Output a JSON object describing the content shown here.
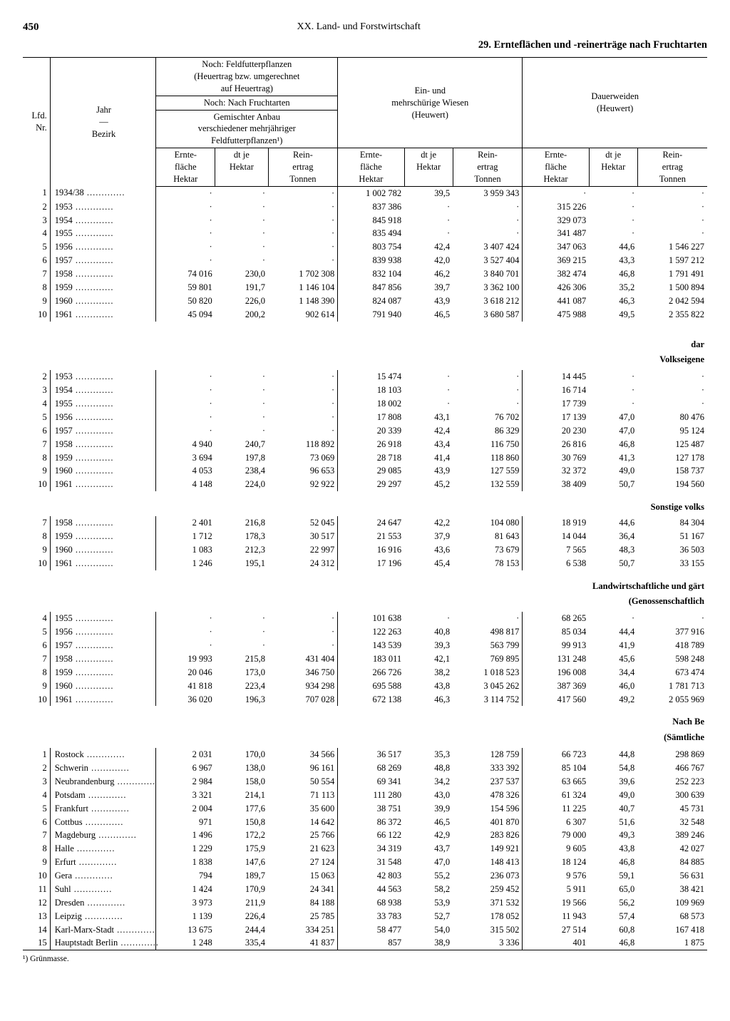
{
  "page_number": "450",
  "chapter": "XX. Land- und Forstwirtschaft",
  "table_title": "29. Ernteflächen und -reinerträge nach Fruchtarten",
  "header": {
    "lfd": "Lfd.\nNr.",
    "jahr": "Jahr\n—\nBezirk",
    "group_a_line1": "Noch: Feldfutterpflanzen",
    "group_a_line2": "(Heuertrag bzw. umgerechnet",
    "group_a_line3": "auf Heuertrag)",
    "group_a_sub1": "Noch: Nach Fruchtarten",
    "group_a_sub2a": "Gemischter Anbau",
    "group_a_sub2b": "verschiedener mehrjähriger",
    "group_a_sub2c": "Feldfutterpflanzen¹)",
    "group_b_line1": "Ein- und",
    "group_b_line2": "mehrschürige Wiesen",
    "group_b_line3": "(Heuwert)",
    "group_c_line1": "Dauerweiden",
    "group_c_line2": "(Heuwert)",
    "c_ernte": "Ernte-\nfläche\nHektar",
    "c_dtje": "dt je\nHektar",
    "c_rein": "Rein-\nertrag\nTonnen"
  },
  "sections": [
    {
      "title": "",
      "rows": [
        {
          "n": "1",
          "y": "1934/38",
          "a1": "·",
          "a2": "·",
          "a3": "·",
          "b1": "1 002 782",
          "b2": "39,5",
          "b3": "3 959 343",
          "c1": "·",
          "c2": "·",
          "c3": "·"
        },
        {
          "n": "2",
          "y": "1953",
          "a1": "·",
          "a2": "·",
          "a3": "·",
          "b1": "837 386",
          "b2": "·",
          "b3": "·",
          "c1": "315 226",
          "c2": "·",
          "c3": "·"
        },
        {
          "n": "3",
          "y": "1954",
          "a1": "·",
          "a2": "·",
          "a3": "·",
          "b1": "845 918",
          "b2": "·",
          "b3": "·",
          "c1": "329 073",
          "c2": "·",
          "c3": "·"
        },
        {
          "n": "4",
          "y": "1955",
          "a1": "·",
          "a2": "·",
          "a3": "·",
          "b1": "835 494",
          "b2": "·",
          "b3": "·",
          "c1": "341 487",
          "c2": "·",
          "c3": "·"
        },
        {
          "n": "5",
          "y": "1956",
          "a1": "·",
          "a2": "·",
          "a3": "·",
          "b1": "803 754",
          "b2": "42,4",
          "b3": "3 407 424",
          "c1": "347 063",
          "c2": "44,6",
          "c3": "1 546 227"
        },
        {
          "n": "6",
          "y": "1957",
          "a1": "·",
          "a2": "·",
          "a3": "·",
          "b1": "839 938",
          "b2": "42,0",
          "b3": "3 527 404",
          "c1": "369 215",
          "c2": "43,3",
          "c3": "1 597 212"
        },
        {
          "n": "7",
          "y": "1958",
          "a1": "74 016",
          "a2": "230,0",
          "a3": "1 702 308",
          "b1": "832 104",
          "b2": "46,2",
          "b3": "3 840 701",
          "c1": "382 474",
          "c2": "46,8",
          "c3": "1 791 491"
        },
        {
          "n": "8",
          "y": "1959",
          "a1": "59 801",
          "a2": "191,7",
          "a3": "1 146 104",
          "b1": "847 856",
          "b2": "39,7",
          "b3": "3 362 100",
          "c1": "426 306",
          "c2": "35,2",
          "c3": "1 500 894"
        },
        {
          "n": "9",
          "y": "1960",
          "a1": "50 820",
          "a2": "226,0",
          "a3": "1 148 390",
          "b1": "824 087",
          "b2": "43,9",
          "b3": "3 618 212",
          "c1": "441 087",
          "c2": "46,3",
          "c3": "2 042 594"
        },
        {
          "n": "10",
          "y": "1961",
          "a1": "45 094",
          "a2": "200,2",
          "a3": "902 614",
          "b1": "791 940",
          "b2": "46,5",
          "b3": "3 680 587",
          "c1": "475 988",
          "c2": "49,5",
          "c3": "2 355 822"
        }
      ]
    },
    {
      "title": "dar",
      "sub": "Volkseigene",
      "rows": [
        {
          "n": "2",
          "y": "1953",
          "a1": "·",
          "a2": "·",
          "a3": "·",
          "b1": "15 474",
          "b2": "·",
          "b3": "·",
          "c1": "14 445",
          "c2": "·",
          "c3": "·"
        },
        {
          "n": "3",
          "y": "1954",
          "a1": "·",
          "a2": "·",
          "a3": "·",
          "b1": "18 103",
          "b2": "·",
          "b3": "·",
          "c1": "16 714",
          "c2": "·",
          "c3": "·"
        },
        {
          "n": "4",
          "y": "1955",
          "a1": "·",
          "a2": "·",
          "a3": "·",
          "b1": "18 002",
          "b2": "·",
          "b3": "·",
          "c1": "17 739",
          "c2": "·",
          "c3": "·"
        },
        {
          "n": "5",
          "y": "1956",
          "a1": "·",
          "a2": "·",
          "a3": "·",
          "b1": "17 808",
          "b2": "43,1",
          "b3": "76 702",
          "c1": "17 139",
          "c2": "47,0",
          "c3": "80 476"
        },
        {
          "n": "6",
          "y": "1957",
          "a1": "·",
          "a2": "·",
          "a3": "·",
          "b1": "20 339",
          "b2": "42,4",
          "b3": "86 329",
          "c1": "20 230",
          "c2": "47,0",
          "c3": "95 124"
        },
        {
          "n": "7",
          "y": "1958",
          "a1": "4 940",
          "a2": "240,7",
          "a3": "118 892",
          "b1": "26 918",
          "b2": "43,4",
          "b3": "116 750",
          "c1": "26 816",
          "c2": "46,8",
          "c3": "125 487"
        },
        {
          "n": "8",
          "y": "1959",
          "a1": "3 694",
          "a2": "197,8",
          "a3": "73 069",
          "b1": "28 718",
          "b2": "41,4",
          "b3": "118 860",
          "c1": "30 769",
          "c2": "41,3",
          "c3": "127 178"
        },
        {
          "n": "9",
          "y": "1960",
          "a1": "4 053",
          "a2": "238,4",
          "a3": "96 653",
          "b1": "29 085",
          "b2": "43,9",
          "b3": "127 559",
          "c1": "32 372",
          "c2": "49,0",
          "c3": "158 737"
        },
        {
          "n": "10",
          "y": "1961",
          "a1": "4 148",
          "a2": "224,0",
          "a3": "92 922",
          "b1": "29 297",
          "b2": "45,2",
          "b3": "132 559",
          "c1": "38 409",
          "c2": "50,7",
          "c3": "194 560"
        }
      ]
    },
    {
      "title": "Sonstige volks",
      "rows": [
        {
          "n": "7",
          "y": "1958",
          "a1": "2 401",
          "a2": "216,8",
          "a3": "52 045",
          "b1": "24 647",
          "b2": "42,2",
          "b3": "104 080",
          "c1": "18 919",
          "c2": "44,6",
          "c3": "84 304"
        },
        {
          "n": "8",
          "y": "1959",
          "a1": "1 712",
          "a2": "178,3",
          "a3": "30 517",
          "b1": "21 553",
          "b2": "37,9",
          "b3": "81 643",
          "c1": "14 044",
          "c2": "36,4",
          "c3": "51 167"
        },
        {
          "n": "9",
          "y": "1960",
          "a1": "1 083",
          "a2": "212,3",
          "a3": "22 997",
          "b1": "16 916",
          "b2": "43,6",
          "b3": "73 679",
          "c1": "7 565",
          "c2": "48,3",
          "c3": "36 503"
        },
        {
          "n": "10",
          "y": "1961",
          "a1": "1 246",
          "a2": "195,1",
          "a3": "24 312",
          "b1": "17 196",
          "b2": "45,4",
          "b3": "78 153",
          "c1": "6 538",
          "c2": "50,7",
          "c3": "33 155"
        }
      ]
    },
    {
      "title": "Landwirtschaftliche und gärt",
      "sub": "(Genossenschaftlich",
      "rows": [
        {
          "n": "4",
          "y": "1955",
          "a1": "·",
          "a2": "·",
          "a3": "·",
          "b1": "101 638",
          "b2": "·",
          "b3": "·",
          "c1": "68 265",
          "c2": "·",
          "c3": "·"
        },
        {
          "n": "5",
          "y": "1956",
          "a1": "·",
          "a2": "·",
          "a3": "·",
          "b1": "122 263",
          "b2": "40,8",
          "b3": "498 817",
          "c1": "85 034",
          "c2": "44,4",
          "c3": "377 916"
        },
        {
          "n": "6",
          "y": "1957",
          "a1": "·",
          "a2": "·",
          "a3": "·",
          "b1": "143 539",
          "b2": "39,3",
          "b3": "563 799",
          "c1": "99 913",
          "c2": "41,9",
          "c3": "418 789"
        },
        {
          "n": "7",
          "y": "1958",
          "a1": "19 993",
          "a2": "215,8",
          "a3": "431 404",
          "b1": "183 011",
          "b2": "42,1",
          "b3": "769 895",
          "c1": "131 248",
          "c2": "45,6",
          "c3": "598 248"
        },
        {
          "n": "8",
          "y": "1959",
          "a1": "20 046",
          "a2": "173,0",
          "a3": "346 750",
          "b1": "266 726",
          "b2": "38,2",
          "b3": "1 018 523",
          "c1": "196 008",
          "c2": "34,4",
          "c3": "673 474"
        },
        {
          "n": "9",
          "y": "1960",
          "a1": "41 818",
          "a2": "223,4",
          "a3": "934 298",
          "b1": "695 588",
          "b2": "43,8",
          "b3": "3 045 262",
          "c1": "387 369",
          "c2": "46,0",
          "c3": "1 781 713"
        },
        {
          "n": "10",
          "y": "1961",
          "a1": "36 020",
          "a2": "196,3",
          "a3": "707 028",
          "b1": "672 138",
          "b2": "46,3",
          "b3": "3 114 752",
          "c1": "417 560",
          "c2": "49,2",
          "c3": "2 055 969"
        }
      ]
    },
    {
      "title": "Nach Be",
      "sub": "(Sämtliche",
      "rows": [
        {
          "n": "1",
          "y": "Rostock",
          "a1": "2 031",
          "a2": "170,0",
          "a3": "34 566",
          "b1": "36 517",
          "b2": "35,3",
          "b3": "128 759",
          "c1": "66 723",
          "c2": "44,8",
          "c3": "298 869"
        },
        {
          "n": "2",
          "y": "Schwerin",
          "a1": "6 967",
          "a2": "138,0",
          "a3": "96 161",
          "b1": "68 269",
          "b2": "48,8",
          "b3": "333 392",
          "c1": "85 104",
          "c2": "54,8",
          "c3": "466 767"
        },
        {
          "n": "3",
          "y": "Neubrandenburg",
          "a1": "2 984",
          "a2": "158,0",
          "a3": "50 554",
          "b1": "69 341",
          "b2": "34,2",
          "b3": "237 537",
          "c1": "63 665",
          "c2": "39,6",
          "c3": "252 223"
        },
        {
          "n": "4",
          "y": "Potsdam",
          "a1": "3 321",
          "a2": "214,1",
          "a3": "71 113",
          "b1": "111 280",
          "b2": "43,0",
          "b3": "478 326",
          "c1": "61 324",
          "c2": "49,0",
          "c3": "300 639"
        },
        {
          "n": "5",
          "y": "Frankfurt",
          "a1": "2 004",
          "a2": "177,6",
          "a3": "35 600",
          "b1": "38 751",
          "b2": "39,9",
          "b3": "154 596",
          "c1": "11 225",
          "c2": "40,7",
          "c3": "45 731"
        },
        {
          "n": "6",
          "y": "Cottbus",
          "a1": "971",
          "a2": "150,8",
          "a3": "14 642",
          "b1": "86 372",
          "b2": "46,5",
          "b3": "401 870",
          "c1": "6 307",
          "c2": "51,6",
          "c3": "32 548"
        },
        {
          "n": "7",
          "y": "Magdeburg",
          "a1": "1 496",
          "a2": "172,2",
          "a3": "25 766",
          "b1": "66 122",
          "b2": "42,9",
          "b3": "283 826",
          "c1": "79 000",
          "c2": "49,3",
          "c3": "389 246"
        },
        {
          "n": "8",
          "y": "Halle",
          "a1": "1 229",
          "a2": "175,9",
          "a3": "21 623",
          "b1": "34 319",
          "b2": "43,7",
          "b3": "149 921",
          "c1": "9 605",
          "c2": "43,8",
          "c3": "42 027"
        },
        {
          "n": "9",
          "y": "Erfurt",
          "a1": "1 838",
          "a2": "147,6",
          "a3": "27 124",
          "b1": "31 548",
          "b2": "47,0",
          "b3": "148 413",
          "c1": "18 124",
          "c2": "46,8",
          "c3": "84 885"
        },
        {
          "n": "10",
          "y": "Gera",
          "a1": "794",
          "a2": "189,7",
          "a3": "15 063",
          "b1": "42 803",
          "b2": "55,2",
          "b3": "236 073",
          "c1": "9 576",
          "c2": "59,1",
          "c3": "56 631"
        },
        {
          "n": "11",
          "y": "Suhl",
          "a1": "1 424",
          "a2": "170,9",
          "a3": "24 341",
          "b1": "44 563",
          "b2": "58,2",
          "b3": "259 452",
          "c1": "5 911",
          "c2": "65,0",
          "c3": "38 421"
        },
        {
          "n": "12",
          "y": "Dresden",
          "a1": "3 973",
          "a2": "211,9",
          "a3": "84 188",
          "b1": "68 938",
          "b2": "53,9",
          "b3": "371 532",
          "c1": "19 566",
          "c2": "56,2",
          "c3": "109 969"
        },
        {
          "n": "13",
          "y": "Leipzig",
          "a1": "1 139",
          "a2": "226,4",
          "a3": "25 785",
          "b1": "33 783",
          "b2": "52,7",
          "b3": "178 052",
          "c1": "11 943",
          "c2": "57,4",
          "c3": "68 573"
        },
        {
          "n": "14",
          "y": "Karl-Marx-Stadt",
          "a1": "13 675",
          "a2": "244,4",
          "a3": "334 251",
          "b1": "58 477",
          "b2": "54,0",
          "b3": "315 502",
          "c1": "27 514",
          "c2": "60,8",
          "c3": "167 418"
        },
        {
          "n": "15",
          "y": "Hauptstadt Berlin",
          "a1": "1 248",
          "a2": "335,4",
          "a3": "41 837",
          "b1": "857",
          "b2": "38,9",
          "b3": "3 336",
          "c1": "401",
          "c2": "46,8",
          "c3": "1 875"
        }
      ]
    }
  ],
  "footnote": "¹) Grünmasse."
}
